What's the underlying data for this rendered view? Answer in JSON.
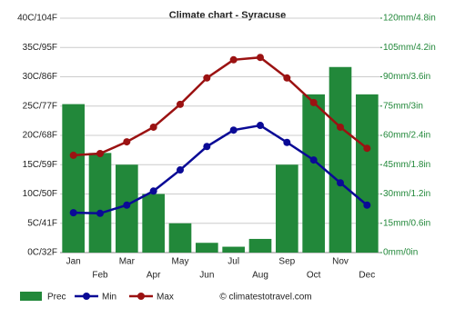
{
  "chart_data": {
    "type": "bar",
    "title": "Climate chart - Syracuse",
    "categories": [
      "Jan",
      "Feb",
      "Mar",
      "Apr",
      "May",
      "Jun",
      "Jul",
      "Aug",
      "Sep",
      "Oct",
      "Nov",
      "Dec"
    ],
    "series": [
      {
        "name": "Prec",
        "type": "bar",
        "axis": "y2",
        "color": "#22883a",
        "values": [
          76,
          51,
          45,
          30,
          15,
          5,
          3,
          7,
          45,
          81,
          95,
          81
        ]
      },
      {
        "name": "Min",
        "type": "line",
        "color": "#0a0a96",
        "values": [
          6.8,
          6.7,
          8.1,
          10.5,
          14.1,
          18.1,
          20.9,
          21.7,
          18.8,
          15.8,
          11.9,
          8.1
        ]
      },
      {
        "name": "Max",
        "type": "line",
        "color": "#9b1212",
        "values": [
          16.6,
          16.9,
          18.9,
          21.4,
          25.3,
          29.8,
          32.9,
          33.3,
          29.8,
          25.6,
          21.4,
          17.8
        ]
      }
    ],
    "ylim": [
      0,
      40
    ],
    "yticks": [
      {
        "value": 0,
        "label": "0C/32F"
      },
      {
        "value": 5,
        "label": "5C/41F"
      },
      {
        "value": 10,
        "label": "10C/50F"
      },
      {
        "value": 15,
        "label": "15C/59F"
      },
      {
        "value": 20,
        "label": "20C/68F"
      },
      {
        "value": 25,
        "label": "25C/77F"
      },
      {
        "value": 30,
        "label": "30C/86F"
      },
      {
        "value": 35,
        "label": "35C/95F"
      },
      {
        "value": 40,
        "label": "40C/104F"
      }
    ],
    "y2lim": [
      0,
      120
    ],
    "y2ticks": [
      {
        "value": 0,
        "label": "0mm/0in"
      },
      {
        "value": 15,
        "label": "15mm/0.6in"
      },
      {
        "value": 30,
        "label": "30mm/1.2in"
      },
      {
        "value": 45,
        "label": "45mm/1.8in"
      },
      {
        "value": 60,
        "label": "60mm/2.4in"
      },
      {
        "value": 75,
        "label": "75mm/3in"
      },
      {
        "value": 90,
        "label": "90mm/3.6in"
      },
      {
        "value": 105,
        "label": "105mm/4.2in"
      },
      {
        "value": 120,
        "label": "120mm/4.8in"
      }
    ],
    "grid": true,
    "watermark": "© climatestotravel.com"
  }
}
